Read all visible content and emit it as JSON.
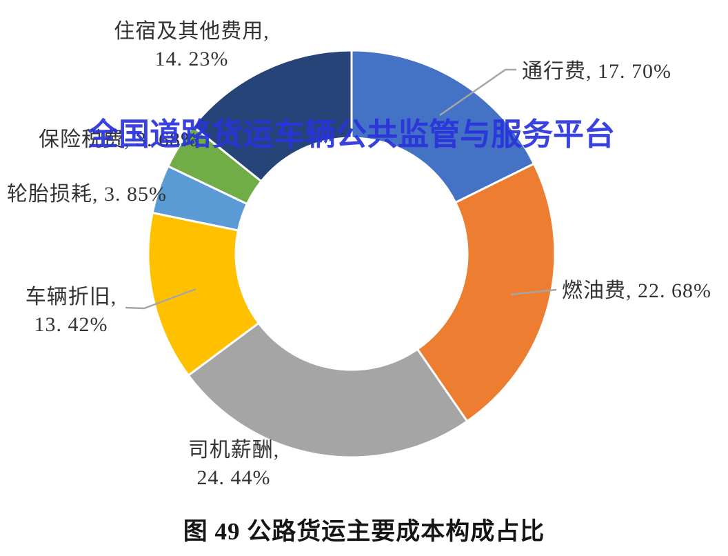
{
  "watermark": {
    "text": "全国道路货运车辆公共监管与服务平台",
    "color": "#2A33DC"
  },
  "title": {
    "text": "图 49 公路货运主要成本构成占比"
  },
  "chart_data": {
    "type": "pie",
    "subtype": "donut",
    "title": "图 49 公路货运主要成本构成占比",
    "categories": [
      "通行费",
      "燃油费",
      "司机薪酬",
      "车辆折旧",
      "轮胎损耗",
      "保险税费",
      "住宿及其他费用"
    ],
    "values": [
      17.7,
      22.68,
      24.44,
      13.42,
      3.85,
      3.68,
      14.23
    ],
    "unit": "%",
    "colors": [
      "#4472C4",
      "#ED7D31",
      "#A5A5A5",
      "#FFC000",
      "#5B9BD5",
      "#70AD47",
      "#264478"
    ],
    "start_angle_deg": 0,
    "direction": "clockwise",
    "inner_radius_ratio": 0.57,
    "legend": "none",
    "leader_line_color": "#A6A6A6",
    "labels": [
      "通行费, 17. 70%",
      "燃油费, 22. 68%",
      "司机薪酬,\n24. 44%",
      "车辆折旧,\n13. 42%",
      "轮胎损耗, 3. 85%",
      "保险税费, 3. 68%",
      "住宿及其他费用,\n14. 23%"
    ]
  }
}
